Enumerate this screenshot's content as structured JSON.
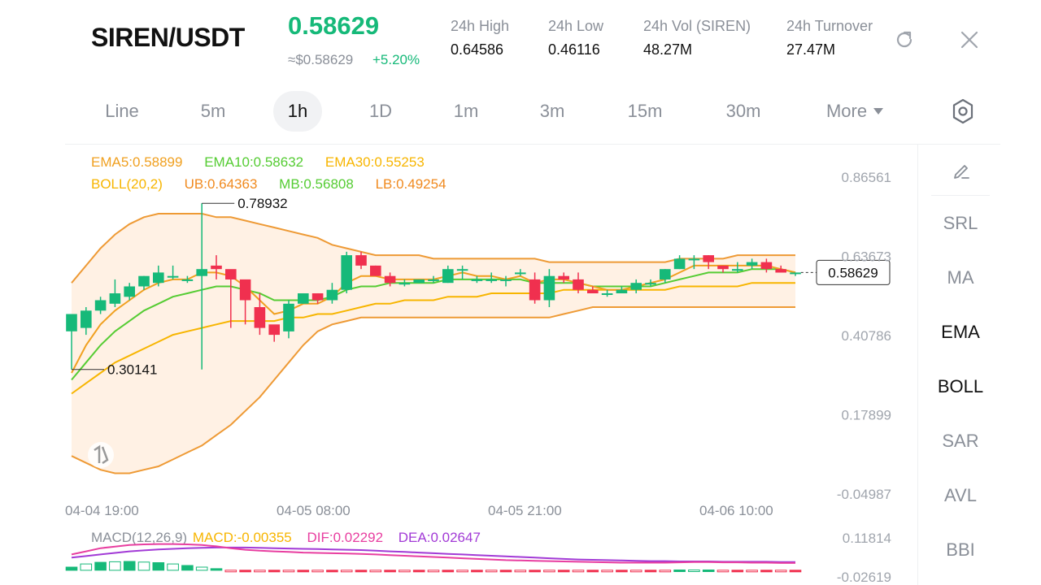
{
  "header": {
    "pair": "SIREN/USDT",
    "last_price": "0.58629",
    "approx_usd": "≈$0.58629",
    "change_pct": "+5.20%",
    "stats": [
      {
        "label": "24h   High",
        "value": "0.64586"
      },
      {
        "label": "24h   Low",
        "value": "0.46116"
      },
      {
        "label": "24h   Vol (SIREN)",
        "value": "48.27M"
      },
      {
        "label": "24h   Turnover",
        "value": "27.47M"
      }
    ],
    "icons": {
      "refresh": "refresh-icon",
      "close": "close-icon"
    }
  },
  "timeframes": {
    "items": [
      "Line",
      "5m",
      "1h",
      "1D",
      "1m",
      "3m",
      "15m",
      "30m"
    ],
    "active": "1h",
    "more_label": "More",
    "settings_icon": "hexagon-gear-icon"
  },
  "indicators": {
    "ema": {
      "ema5": "EMA5:0.58899",
      "ema10": "EMA10:0.58632",
      "ema30": "EMA30:0.55253"
    },
    "boll": {
      "name": "BOLL(20,2)",
      "ub": "UB:0.64363",
      "mb": "MB:0.56808",
      "lb": "LB:0.49254"
    },
    "macd": {
      "name": "MACD(12,26,9)",
      "macd": "MACD:-0.00355",
      "dif": "DIF:0.02292",
      "dea": "DEA:0.02647"
    }
  },
  "side_panel": {
    "draw_icon": "pencil-icon",
    "items": [
      "SRL",
      "MA",
      "EMA",
      "BOLL",
      "SAR",
      "AVL",
      "BBI"
    ],
    "active": [
      "EMA",
      "BOLL"
    ]
  },
  "colors": {
    "up": "#16b979",
    "down": "#f0304f",
    "ema5": "#f0a020",
    "ema10": "#55cc33",
    "ema30": "#f7b500",
    "boll_band": "#ee9a35",
    "boll_fill": "#fff1e4",
    "dif": "#e83ea0",
    "dea": "#a23ad6"
  },
  "chart_data": [
    {
      "type": "candlestick",
      "interval": "1h",
      "y_ticks": [
        "0.86561",
        "0.63673",
        "0.40786",
        "0.17899",
        "-0.04987"
      ],
      "ylim": [
        -0.04987,
        0.86561
      ],
      "x_tick_labels": [
        "04-04 19:00",
        "04-05 08:00",
        "04-05 21:00",
        "04-06 10:00"
      ],
      "markers": {
        "high": "0.78932",
        "low": "0.30141",
        "current": "0.58629"
      },
      "candles": [
        [
          0.42,
          0.47,
          0.43,
          0.31
        ],
        [
          0.43,
          0.48,
          0.49,
          0.41
        ],
        [
          0.48,
          0.51,
          0.52,
          0.47
        ],
        [
          0.5,
          0.53,
          0.57,
          0.49
        ],
        [
          0.52,
          0.55,
          0.56,
          0.51
        ],
        [
          0.55,
          0.58,
          0.58,
          0.54
        ],
        [
          0.56,
          0.59,
          0.61,
          0.55
        ],
        [
          0.58,
          0.58,
          0.61,
          0.57
        ],
        [
          0.57,
          0.57,
          0.58,
          0.56
        ],
        [
          0.58,
          0.6,
          0.79,
          0.31
        ],
        [
          0.61,
          0.6,
          0.64,
          0.57
        ],
        [
          0.6,
          0.57,
          0.59,
          0.43
        ],
        [
          0.57,
          0.51,
          0.55,
          0.44
        ],
        [
          0.49,
          0.43,
          0.53,
          0.41
        ],
        [
          0.44,
          0.41,
          0.43,
          0.39
        ],
        [
          0.42,
          0.5,
          0.51,
          0.4
        ],
        [
          0.5,
          0.53,
          0.53,
          0.5
        ],
        [
          0.53,
          0.51,
          0.53,
          0.5
        ],
        [
          0.51,
          0.54,
          0.56,
          0.5
        ],
        [
          0.54,
          0.64,
          0.65,
          0.53
        ],
        [
          0.64,
          0.61,
          0.65,
          0.6
        ],
        [
          0.61,
          0.58,
          0.61,
          0.58
        ],
        [
          0.58,
          0.56,
          0.59,
          0.55
        ],
        [
          0.56,
          0.56,
          0.57,
          0.55
        ],
        [
          0.56,
          0.57,
          0.57,
          0.56
        ],
        [
          0.57,
          0.57,
          0.58,
          0.56
        ],
        [
          0.56,
          0.6,
          0.61,
          0.56
        ],
        [
          0.6,
          0.6,
          0.61,
          0.57
        ],
        [
          0.57,
          0.57,
          0.58,
          0.56
        ],
        [
          0.57,
          0.57,
          0.59,
          0.56
        ],
        [
          0.57,
          0.57,
          0.58,
          0.55
        ],
        [
          0.59,
          0.59,
          0.6,
          0.58
        ],
        [
          0.57,
          0.51,
          0.59,
          0.5
        ],
        [
          0.51,
          0.58,
          0.6,
          0.49
        ],
        [
          0.58,
          0.57,
          0.59,
          0.56
        ],
        [
          0.57,
          0.54,
          0.59,
          0.53
        ],
        [
          0.54,
          0.53,
          0.55,
          0.53
        ],
        [
          0.53,
          0.53,
          0.54,
          0.52
        ],
        [
          0.53,
          0.54,
          0.55,
          0.53
        ],
        [
          0.54,
          0.56,
          0.57,
          0.53
        ],
        [
          0.56,
          0.56,
          0.57,
          0.55
        ],
        [
          0.57,
          0.6,
          0.6,
          0.56
        ],
        [
          0.6,
          0.63,
          0.64,
          0.6
        ],
        [
          0.63,
          0.63,
          0.64,
          0.6
        ],
        [
          0.64,
          0.62,
          0.64,
          0.6
        ],
        [
          0.61,
          0.6,
          0.61,
          0.59
        ],
        [
          0.6,
          0.6,
          0.62,
          0.59
        ],
        [
          0.61,
          0.62,
          0.63,
          0.6
        ],
        [
          0.62,
          0.6,
          0.63,
          0.59
        ],
        [
          0.6,
          0.59,
          0.61,
          0.59
        ],
        [
          0.59,
          0.59,
          0.59,
          0.58
        ]
      ],
      "ema5": [
        0.3,
        0.38,
        0.44,
        0.48,
        0.51,
        0.54,
        0.56,
        0.57,
        0.57,
        0.59,
        0.59,
        0.58,
        0.55,
        0.51,
        0.47,
        0.48,
        0.5,
        0.5,
        0.52,
        0.56,
        0.58,
        0.58,
        0.57,
        0.57,
        0.57,
        0.57,
        0.58,
        0.59,
        0.58,
        0.58,
        0.57,
        0.58,
        0.56,
        0.57,
        0.57,
        0.56,
        0.55,
        0.54,
        0.54,
        0.55,
        0.56,
        0.57,
        0.59,
        0.61,
        0.61,
        0.61,
        0.61,
        0.61,
        0.61,
        0.6,
        0.59
      ],
      "ema10": [
        0.28,
        0.33,
        0.38,
        0.42,
        0.45,
        0.48,
        0.5,
        0.52,
        0.53,
        0.54,
        0.55,
        0.55,
        0.54,
        0.53,
        0.51,
        0.51,
        0.51,
        0.51,
        0.52,
        0.54,
        0.55,
        0.55,
        0.56,
        0.56,
        0.56,
        0.56,
        0.57,
        0.57,
        0.57,
        0.57,
        0.57,
        0.57,
        0.56,
        0.56,
        0.56,
        0.56,
        0.55,
        0.55,
        0.55,
        0.55,
        0.55,
        0.56,
        0.57,
        0.58,
        0.59,
        0.59,
        0.59,
        0.6,
        0.6,
        0.6,
        0.59
      ],
      "ema30": [
        0.24,
        0.27,
        0.3,
        0.33,
        0.35,
        0.37,
        0.39,
        0.41,
        0.42,
        0.43,
        0.44,
        0.45,
        0.45,
        0.45,
        0.45,
        0.46,
        0.46,
        0.47,
        0.47,
        0.48,
        0.49,
        0.5,
        0.5,
        0.51,
        0.51,
        0.51,
        0.52,
        0.52,
        0.52,
        0.53,
        0.53,
        0.53,
        0.53,
        0.53,
        0.54,
        0.54,
        0.54,
        0.54,
        0.54,
        0.54,
        0.54,
        0.54,
        0.55,
        0.55,
        0.55,
        0.55,
        0.55,
        0.56,
        0.56,
        0.56,
        0.56
      ],
      "boll_ub": [
        0.56,
        0.61,
        0.66,
        0.7,
        0.73,
        0.75,
        0.76,
        0.76,
        0.76,
        0.76,
        0.75,
        0.75,
        0.74,
        0.73,
        0.72,
        0.71,
        0.7,
        0.69,
        0.67,
        0.66,
        0.65,
        0.64,
        0.64,
        0.64,
        0.64,
        0.63,
        0.63,
        0.63,
        0.63,
        0.63,
        0.63,
        0.63,
        0.63,
        0.62,
        0.62,
        0.62,
        0.62,
        0.62,
        0.62,
        0.62,
        0.62,
        0.62,
        0.63,
        0.63,
        0.63,
        0.63,
        0.64,
        0.64,
        0.64,
        0.64,
        0.64
      ],
      "boll_lb": [
        0.06,
        0.04,
        0.02,
        0.01,
        0.01,
        0.02,
        0.03,
        0.05,
        0.07,
        0.09,
        0.12,
        0.15,
        0.19,
        0.23,
        0.28,
        0.33,
        0.38,
        0.42,
        0.44,
        0.45,
        0.46,
        0.46,
        0.46,
        0.46,
        0.46,
        0.46,
        0.46,
        0.46,
        0.46,
        0.46,
        0.46,
        0.46,
        0.46,
        0.46,
        0.47,
        0.48,
        0.49,
        0.49,
        0.49,
        0.49,
        0.49,
        0.49,
        0.49,
        0.49,
        0.49,
        0.49,
        0.49,
        0.49,
        0.49,
        0.49,
        0.49
      ]
    },
    {
      "type": "bar",
      "name": "MACD",
      "y_ticks": [
        "0.11814",
        "-0.02619"
      ],
      "ylim": [
        -0.02619,
        0.11814
      ],
      "hist": [
        0.01,
        0.02,
        0.025,
        0.027,
        0.028,
        0.026,
        0.024,
        0.02,
        0.015,
        0.01,
        0.005,
        -0.001,
        -0.003,
        -0.003,
        -0.003,
        -0.003,
        -0.002,
        -0.002,
        -0.002,
        -0.002,
        -0.001,
        -0.002,
        -0.002,
        -0.002,
        -0.002,
        -0.002,
        -0.002,
        -0.002,
        -0.002,
        -0.002,
        -0.002,
        -0.002,
        -0.002,
        -0.002,
        -0.002,
        -0.002,
        -0.002,
        -0.002,
        -0.002,
        -0.001,
        -0.001,
        -0.001,
        0.001,
        0.001,
        0.001,
        -0.001,
        -0.001,
        -0.002,
        -0.002,
        -0.003,
        -0.004
      ],
      "dif": [
        0.05,
        0.06,
        0.07,
        0.075,
        0.08,
        0.082,
        0.083,
        0.083,
        0.082,
        0.08,
        0.076,
        0.07,
        0.065,
        0.062,
        0.06,
        0.058,
        0.056,
        0.055,
        0.054,
        0.053,
        0.052,
        0.05,
        0.048,
        0.046,
        0.044,
        0.042,
        0.04,
        0.038,
        0.036,
        0.034,
        0.032,
        0.031,
        0.03,
        0.029,
        0.028,
        0.027,
        0.026,
        0.025,
        0.024,
        0.024,
        0.024,
        0.024,
        0.025,
        0.026,
        0.026,
        0.025,
        0.025,
        0.024,
        0.024,
        0.023,
        0.023
      ],
      "dea": [
        0.04,
        0.045,
        0.05,
        0.055,
        0.06,
        0.063,
        0.066,
        0.068,
        0.07,
        0.071,
        0.072,
        0.072,
        0.072,
        0.071,
        0.07,
        0.069,
        0.068,
        0.067,
        0.066,
        0.065,
        0.064,
        0.062,
        0.06,
        0.058,
        0.056,
        0.054,
        0.052,
        0.05,
        0.048,
        0.046,
        0.044,
        0.042,
        0.04,
        0.038,
        0.036,
        0.034,
        0.033,
        0.032,
        0.031,
        0.03,
        0.029,
        0.029,
        0.028,
        0.028,
        0.028,
        0.027,
        0.027,
        0.027,
        0.027,
        0.026,
        0.026
      ]
    }
  ]
}
